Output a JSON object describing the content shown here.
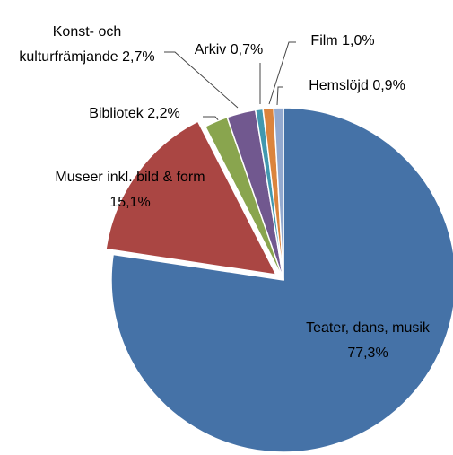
{
  "chart_data": {
    "type": "pie",
    "categories": [
      "Teater, dans, musik",
      "Museer inkl. bild & form",
      "Bibliotek",
      "Konst- och kulturfrämjande",
      "Arkiv",
      "Film",
      "Hemslöjd"
    ],
    "values": [
      77.3,
      15.1,
      2.2,
      2.7,
      0.7,
      1.0,
      0.9
    ],
    "value_labels": [
      "77,3%",
      "15,1%",
      "2,2%",
      "2,7%",
      "0,7%",
      "1,0%",
      "0,9%"
    ],
    "colors": [
      "#4572a7",
      "#aa4643",
      "#89a54e",
      "#71588f",
      "#4198af",
      "#db843d",
      "#93a9cf"
    ]
  }
}
